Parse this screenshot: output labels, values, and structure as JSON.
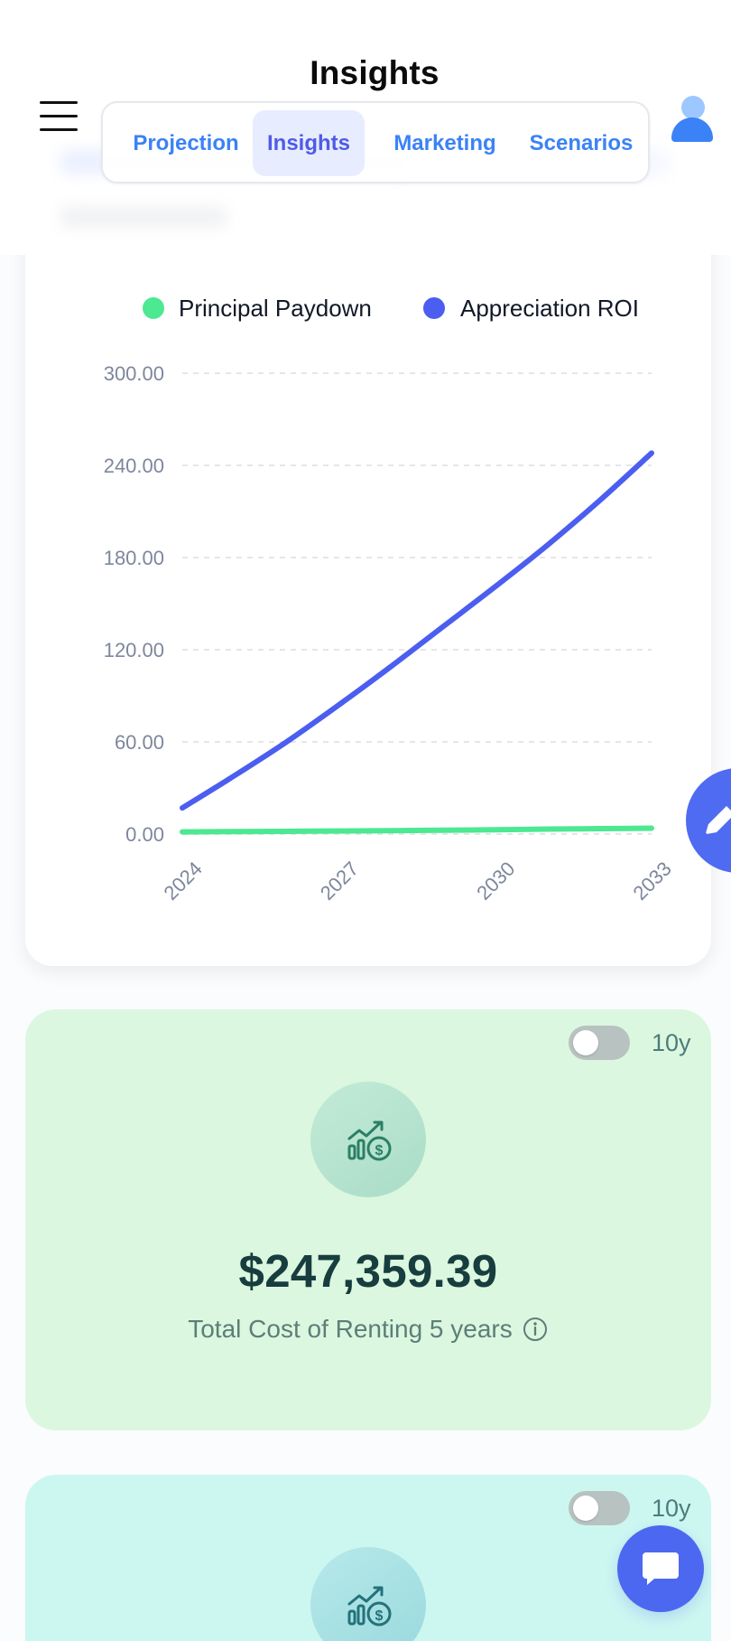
{
  "header": {
    "title": "Insights",
    "tabs": [
      {
        "label": "Projection"
      },
      {
        "label": "Insights"
      },
      {
        "label": "Marketing"
      },
      {
        "label": "Scenarios"
      }
    ],
    "active_tab": "Insights"
  },
  "colors": {
    "primary": "#4f5be7",
    "tab_text": "#3b82f6",
    "principal_series": "#4ce892",
    "appreciation_series": "#4b5ef0",
    "green_card": "#dcf7df",
    "cyan_card": "#ccf7f1",
    "fab": "#4f6bf2"
  },
  "icons": {
    "menu": "menu-icon",
    "profile": "user-profile-icon",
    "edit": "edit-pencil-icon",
    "insight": "growth-dollar-icon",
    "info": "info-icon",
    "chat": "chat-icon"
  },
  "chart_data": {
    "type": "line",
    "legend_position": "top-center",
    "grid": true,
    "x": [
      "2024",
      "2025",
      "2026",
      "2027",
      "2028",
      "2029",
      "2030",
      "2031",
      "2032",
      "2033"
    ],
    "x_tick_labels": [
      "2024",
      "2027",
      "2030",
      "2033"
    ],
    "y_tick_labels": [
      "300.00",
      "240.00",
      "180.00",
      "120.00",
      "60.00",
      "0.00"
    ],
    "ylim": [
      0,
      300
    ],
    "series": [
      {
        "name": "Principal Paydown",
        "values": [
          1.4,
          1.6,
          1.8,
          2.0,
          2.2,
          2.5,
          2.8,
          3.2,
          3.5,
          3.8
        ]
      },
      {
        "name": "Appreciation ROI",
        "values": [
          17,
          38,
          60,
          84,
          109,
          135,
          161,
          188,
          217,
          248
        ]
      }
    ]
  },
  "cards": [
    {
      "period": "10y",
      "amount": "$247,359.39",
      "caption": "Total Cost of Renting 5 years"
    },
    {
      "period": "10y"
    }
  ]
}
